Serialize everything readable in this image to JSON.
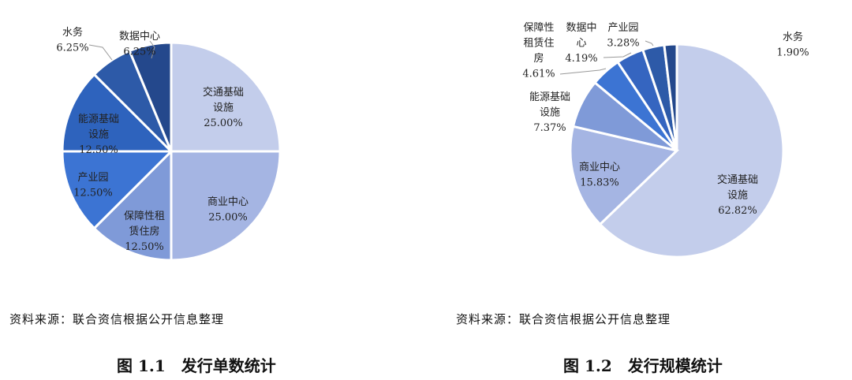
{
  "chart_data": [
    {
      "type": "pie",
      "title": "图 1.1　发行单数统计",
      "source": "资料来源：联合资信根据公开信息整理",
      "start": "top",
      "direction": "clockwise",
      "slices": [
        {
          "label": "交通基础设施",
          "lines": [
            "交通基础",
            "设施",
            "25.00%"
          ],
          "value": 25.0,
          "color": "#c3cdeb"
        },
        {
          "label": "商业中心",
          "lines": [
            "商业中心",
            "25.00%"
          ],
          "value": 25.0,
          "color": "#a5b5e3"
        },
        {
          "label": "保障性租赁住房",
          "lines": [
            "保障性租",
            "赁住房",
            "12.50%"
          ],
          "value": 12.5,
          "color": "#7f9ad8"
        },
        {
          "label": "产业园",
          "lines": [
            "产业园",
            "12.50%"
          ],
          "value": 12.5,
          "color": "#3c74d3"
        },
        {
          "label": "能源基础设施",
          "lines": [
            "能源基础",
            "设施",
            "12.50%"
          ],
          "value": 12.5,
          "color": "#2e63bd"
        },
        {
          "label": "水务",
          "lines": [
            "水务",
            "6.25%"
          ],
          "value": 6.25,
          "color": "#2d5aa8"
        },
        {
          "label": "数据中心",
          "lines": [
            "数据中心",
            "6.25%"
          ],
          "value": 6.25,
          "color": "#24488c"
        }
      ]
    },
    {
      "type": "pie",
      "title": "图 1.2　发行规模统计",
      "source": "资料来源：联合资信根据公开信息整理",
      "start": "top",
      "direction": "clockwise",
      "slices": [
        {
          "label": "交通基础设施",
          "lines": [
            "交通基础",
            "设施",
            "62.82%"
          ],
          "value": 62.82,
          "color": "#c3cdeb"
        },
        {
          "label": "商业中心",
          "lines": [
            "商业中心",
            "15.83%"
          ],
          "value": 15.83,
          "color": "#a5b5e3"
        },
        {
          "label": "能源基础设施",
          "lines": [
            "能源基础",
            "设施",
            "7.37%"
          ],
          "value": 7.37,
          "color": "#7f9ad8"
        },
        {
          "label": "保障性租赁住房",
          "lines": [
            "保障性",
            "租赁住",
            "房",
            "4.61%"
          ],
          "value": 4.61,
          "color": "#3c74d3"
        },
        {
          "label": "数据中心",
          "lines": [
            "数据中",
            "心",
            "4.19%"
          ],
          "value": 4.19,
          "color": "#3565c0"
        },
        {
          "label": "产业园",
          "lines": [
            "产业园",
            "3.28%"
          ],
          "value": 3.28,
          "color": "#2d5aa8"
        },
        {
          "label": "水务",
          "lines": [
            "水务",
            "1.90%"
          ],
          "value": 1.9,
          "color": "#24488c"
        }
      ]
    }
  ]
}
